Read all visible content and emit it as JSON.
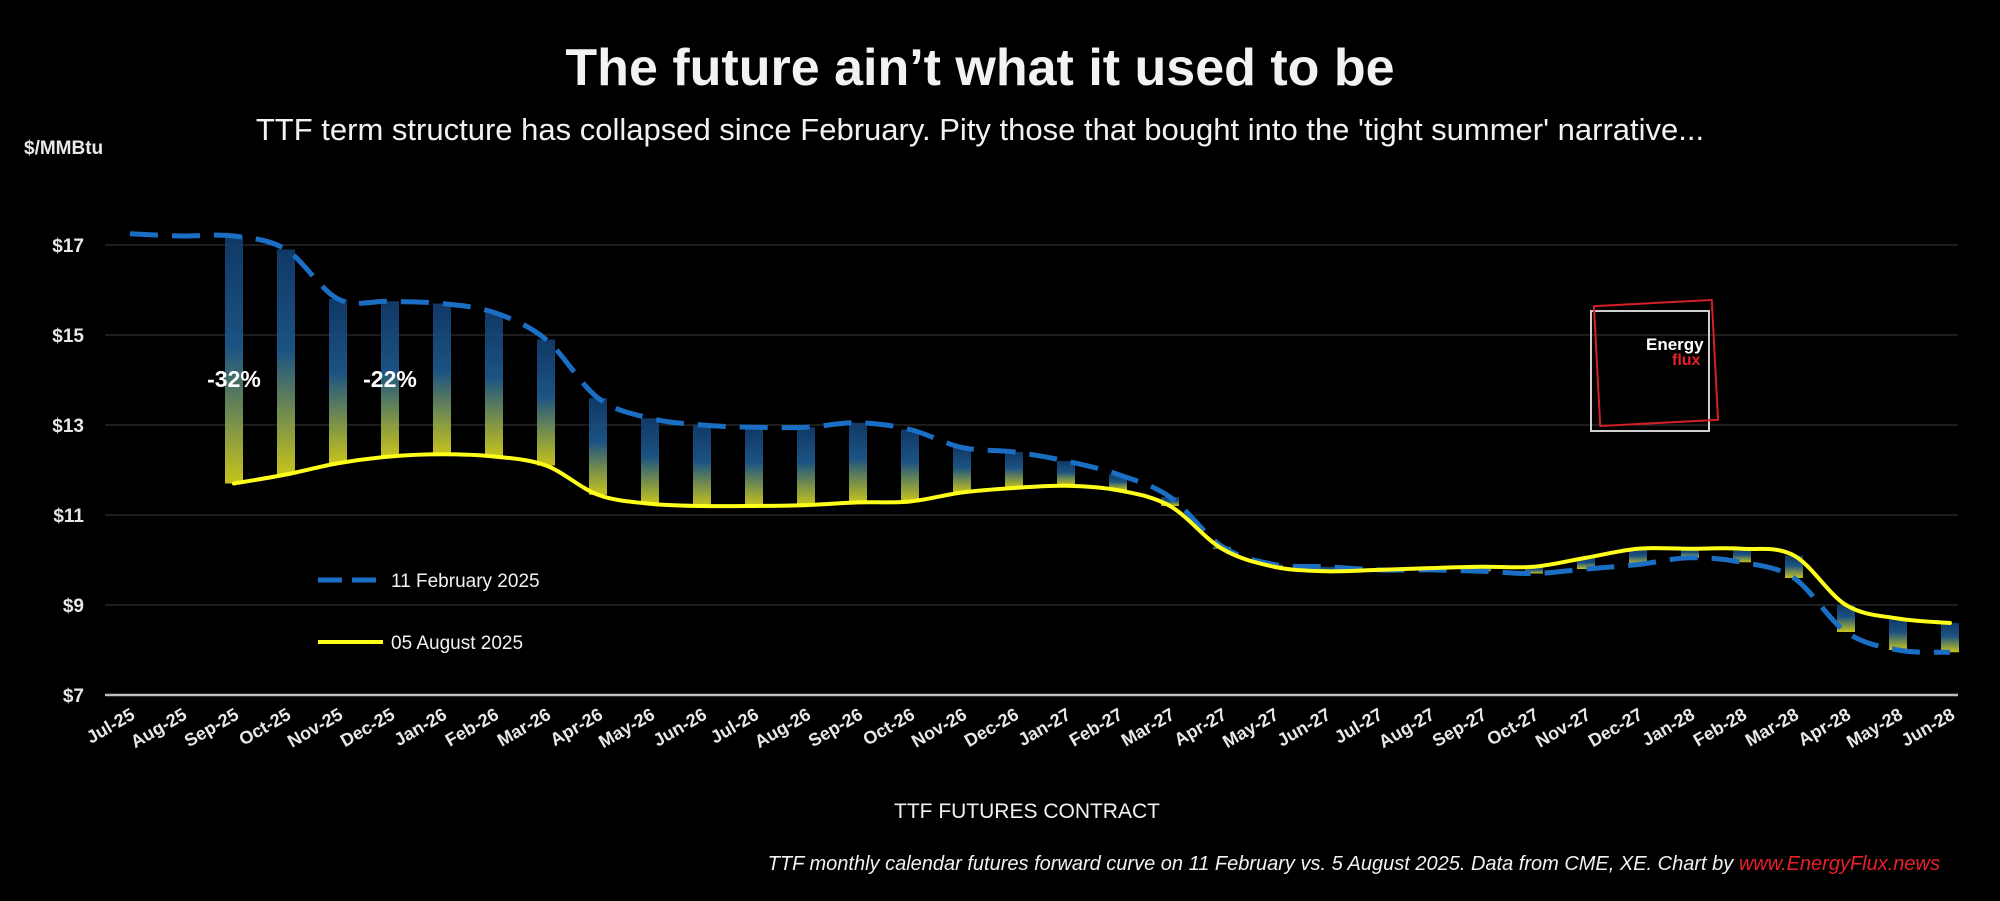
{
  "header": {
    "title": "The future ain’t what it used to be",
    "subtitle": "TTF term structure has collapsed since February. Pity those that bought into the 'tight summer' narrative..."
  },
  "footer": {
    "text": "TTF monthly calendar futures forward curve on 11 February vs. 5 August 2025. Data from CME, XE. Chart by ",
    "brand": "www.EnergyFlux.news"
  },
  "logo": {
    "line1": "Energy",
    "line2": "flux"
  },
  "colors": {
    "feb": "#1a6fc4",
    "aug": "#ffff1a",
    "bar_top": "#1b4f8a",
    "bar_bottom": "#d6d21c",
    "grid": "#3a3a3a",
    "axis": "#bfbfbf",
    "brand_red": "#e8202a"
  },
  "chart_data": {
    "type": "line",
    "title": "The future ain’t what it used to be",
    "subtitle": "TTF term structure has collapsed since February. Pity those that bought into the 'tight summer' narrative...",
    "xlabel": "TTF FUTURES CONTRACT",
    "ylabel": "$/MMBtu",
    "ylim": [
      7,
      17
    ],
    "yticks": [
      "$7",
      "$9",
      "$11",
      "$13",
      "$15",
      "$17"
    ],
    "grid": true,
    "legend_placement": "left-middle",
    "categories": [
      "Jul-25",
      "Aug-25",
      "Sep-25",
      "Oct-25",
      "Nov-25",
      "Dec-25",
      "Jan-26",
      "Feb-26",
      "Mar-26",
      "Apr-26",
      "May-26",
      "Jun-26",
      "Jul-26",
      "Aug-26",
      "Sep-26",
      "Oct-26",
      "Nov-26",
      "Dec-26",
      "Jan-27",
      "Feb-27",
      "Mar-27",
      "Apr-27",
      "May-27",
      "Jun-27",
      "Jul-27",
      "Aug-27",
      "Sep-27",
      "Oct-27",
      "Nov-27",
      "Dec-27",
      "Jan-28",
      "Feb-28",
      "Mar-28",
      "Apr-28",
      "May-28",
      "Jun-28"
    ],
    "series": [
      {
        "name": "11 February 2025",
        "style": "dashed",
        "values": [
          17.25,
          17.2,
          17.2,
          16.9,
          15.8,
          15.75,
          15.7,
          15.5,
          14.9,
          13.6,
          13.15,
          13.0,
          12.95,
          12.95,
          13.05,
          12.9,
          12.5,
          12.4,
          12.2,
          11.9,
          11.4,
          10.3,
          9.9,
          9.85,
          9.78,
          9.78,
          9.75,
          9.7,
          9.8,
          9.9,
          10.05,
          9.95,
          9.6,
          8.4,
          8.0,
          7.95
        ]
      },
      {
        "name": "05 August 2025",
        "style": "solid",
        "values": [
          null,
          null,
          11.7,
          11.9,
          12.15,
          12.3,
          12.35,
          12.3,
          12.1,
          11.45,
          11.25,
          11.2,
          11.2,
          11.22,
          11.28,
          11.3,
          11.5,
          11.6,
          11.65,
          11.55,
          11.2,
          10.25,
          9.85,
          9.75,
          9.78,
          9.82,
          9.85,
          9.85,
          10.05,
          10.25,
          10.25,
          10.25,
          10.1,
          9.0,
          8.7,
          8.6
        ]
      }
    ],
    "annotations": [
      {
        "text": "-32%",
        "category": "Sep-25"
      },
      {
        "text": "-22%",
        "category": "Dec-25"
      }
    ]
  }
}
